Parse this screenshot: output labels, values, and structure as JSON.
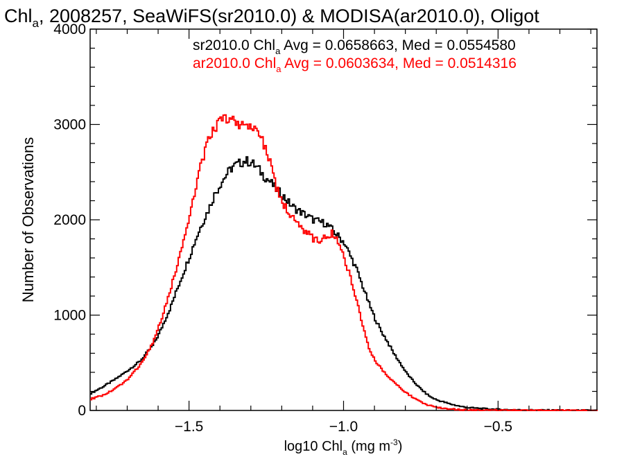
{
  "chart_data": {
    "type": "line",
    "title_main": "Chl",
    "title_sub": "a",
    "title_rest": ", 2008257, SeaWiFS(sr2010.0) & MODISA(ar2010.0), Oligot",
    "xlabel_pre": "log10 Chl",
    "xlabel_sub": "a",
    "xlabel_post": " (mg m",
    "xlabel_sup": "-3",
    "xlabel_end": ")",
    "ylabel": "Number of Observations",
    "xlim": [
      -1.82,
      -0.18
    ],
    "ylim": [
      0,
      4000
    ],
    "x_ticks": [
      -1.5,
      -1.0,
      -0.5
    ],
    "x_tick_labels": [
      "−1.5",
      "−1.0",
      "−0.5"
    ],
    "y_ticks": [
      0,
      1000,
      2000,
      3000,
      4000
    ],
    "y_tick_labels": [
      "0",
      "1000",
      "2000",
      "3000",
      "4000"
    ],
    "grid": false,
    "annotations": [
      {
        "pre": "sr2010.0 Chl",
        "sub": "a",
        "post": " Avg = 0.0658663, Med = 0.0554580",
        "color": "#000000"
      },
      {
        "pre": "ar2010.0 Chl",
        "sub": "a",
        "post": " Avg = 0.0603634, Med = 0.0514316",
        "color": "#ff0000"
      }
    ],
    "series": [
      {
        "color": "#000000",
        "x": [
          -1.82,
          -1.78,
          -1.74,
          -1.7,
          -1.66,
          -1.62,
          -1.6,
          -1.58,
          -1.56,
          -1.54,
          -1.52,
          -1.5,
          -1.48,
          -1.46,
          -1.44,
          -1.42,
          -1.4,
          -1.38,
          -1.36,
          -1.34,
          -1.32,
          -1.3,
          -1.28,
          -1.26,
          -1.24,
          -1.22,
          -1.2,
          -1.18,
          -1.16,
          -1.14,
          -1.12,
          -1.1,
          -1.08,
          -1.06,
          -1.04,
          -1.02,
          -1.0,
          -0.98,
          -0.96,
          -0.94,
          -0.92,
          -0.9,
          -0.88,
          -0.86,
          -0.84,
          -0.82,
          -0.8,
          -0.78,
          -0.76,
          -0.74,
          -0.72,
          -0.7,
          -0.68,
          -0.66,
          -0.64,
          -0.62,
          -0.6,
          -0.55,
          -0.5,
          -0.45,
          -0.4,
          -0.35,
          -0.3,
          -0.25,
          -0.18
        ],
        "y": [
          180,
          250,
          330,
          420,
          520,
          680,
          800,
          950,
          1100,
          1280,
          1450,
          1620,
          1800,
          1960,
          2100,
          2260,
          2380,
          2480,
          2560,
          2590,
          2620,
          2600,
          2540,
          2460,
          2400,
          2320,
          2260,
          2180,
          2120,
          2080,
          2040,
          2000,
          1980,
          1960,
          1900,
          1830,
          1760,
          1620,
          1480,
          1300,
          1120,
          960,
          830,
          720,
          600,
          500,
          400,
          320,
          250,
          190,
          140,
          110,
          90,
          70,
          55,
          40,
          30,
          18,
          10,
          6,
          3,
          2,
          1,
          0,
          0
        ]
      },
      {
        "color": "#ff0000",
        "x": [
          -1.82,
          -1.78,
          -1.74,
          -1.7,
          -1.66,
          -1.62,
          -1.6,
          -1.58,
          -1.56,
          -1.54,
          -1.52,
          -1.5,
          -1.48,
          -1.46,
          -1.44,
          -1.42,
          -1.4,
          -1.38,
          -1.36,
          -1.34,
          -1.32,
          -1.3,
          -1.28,
          -1.26,
          -1.24,
          -1.22,
          -1.2,
          -1.18,
          -1.16,
          -1.14,
          -1.12,
          -1.1,
          -1.08,
          -1.06,
          -1.04,
          -1.02,
          -1.0,
          -0.98,
          -0.96,
          -0.94,
          -0.92,
          -0.9,
          -0.88,
          -0.86,
          -0.84,
          -0.82,
          -0.8,
          -0.78,
          -0.76,
          -0.74,
          -0.72,
          -0.7,
          -0.68,
          -0.66,
          -0.64,
          -0.62,
          -0.6,
          -0.55,
          -0.5,
          -0.45,
          -0.4,
          -0.35,
          -0.3,
          -0.25,
          -0.18
        ],
        "y": [
          120,
          160,
          230,
          330,
          480,
          700,
          880,
          1080,
          1300,
          1520,
          1780,
          2060,
          2360,
          2620,
          2820,
          2960,
          3040,
          3060,
          3060,
          3000,
          2980,
          2960,
          2930,
          2800,
          2600,
          2340,
          2180,
          2080,
          1980,
          1910,
          1870,
          1800,
          1780,
          1830,
          1860,
          1780,
          1600,
          1400,
          1160,
          880,
          660,
          520,
          440,
          360,
          300,
          240,
          190,
          140,
          100,
          70,
          50,
          35,
          25,
          18,
          12,
          8,
          5,
          3,
          2,
          1,
          1,
          0,
          0,
          0,
          0
        ]
      }
    ]
  }
}
